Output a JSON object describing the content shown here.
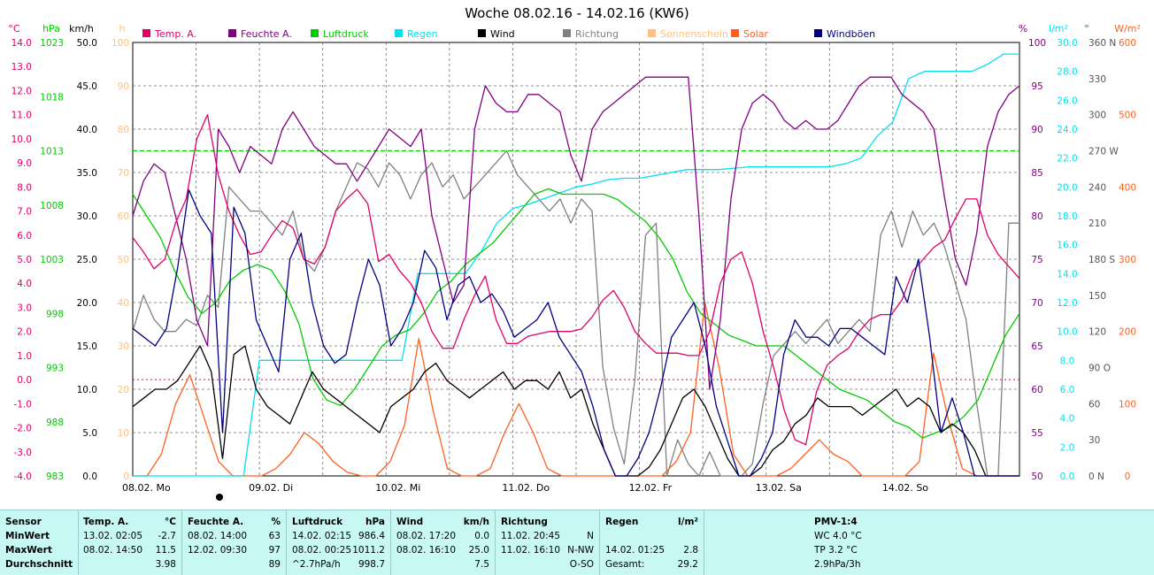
{
  "title": "Woche 08.02.16 - 14.02.16 (KW6)",
  "colors": {
    "temp": "#e0006a",
    "humidity": "#800080",
    "pressure": "#00cc00",
    "rain": "#00e0f0",
    "wind": "#000000",
    "direction": "#808080",
    "sunshine": "#ffc080",
    "solar": "#ff6020",
    "gust": "#000080",
    "grid": "#707070",
    "table_bg": "#c8f8f4"
  },
  "legend": [
    {
      "label": "Temp. A.",
      "color": "#e0006a"
    },
    {
      "label": "Feuchte A.",
      "color": "#800080"
    },
    {
      "label": "Luftdruck",
      "color": "#00cc00"
    },
    {
      "label": "Regen",
      "color": "#00e0f0"
    },
    {
      "label": "Wind",
      "color": "#000000"
    },
    {
      "label": "Richtung",
      "color": "#808080"
    },
    {
      "label": "Sonnenschein",
      "color": "#ffc080"
    },
    {
      "label": "Solar",
      "color": "#ff6020"
    },
    {
      "label": "Windböen",
      "color": "#000080"
    }
  ],
  "axes": {
    "temp": {
      "unit": "°C",
      "ticks": [
        "14.0",
        "13.0",
        "12.0",
        "11.0",
        "10.0",
        "9.0",
        "8.0",
        "7.0",
        "6.0",
        "5.0",
        "4.0",
        "3.0",
        "2.0",
        "1.0",
        "0.0",
        "-1.0",
        "-2.0",
        "-3.0",
        "-4.0"
      ]
    },
    "pressure": {
      "unit": "hPa",
      "ticks": [
        "1023",
        "1018",
        "1013",
        "1008",
        "1003",
        "998",
        "993",
        "988",
        "983"
      ]
    },
    "wind": {
      "unit": "km/h",
      "ticks": [
        "50.0",
        "45.0",
        "40.0",
        "35.0",
        "30.0",
        "25.0",
        "20.0",
        "15.0",
        "10.0",
        "5.0",
        "0.0"
      ]
    },
    "sun": {
      "unit": "h",
      "ticks": [
        "100",
        "90",
        "80",
        "70",
        "60",
        "50",
        "40",
        "30",
        "20",
        "10",
        "0"
      ]
    },
    "humidity": {
      "unit": "%",
      "ticks": [
        "100",
        "95",
        "90",
        "85",
        "80",
        "75",
        "70",
        "65",
        "60",
        "55",
        "50"
      ]
    },
    "rain": {
      "unit": "l/m²",
      "ticks": [
        "30.0",
        "28.0",
        "26.0",
        "24.0",
        "22.0",
        "20.0",
        "18.0",
        "16.0",
        "14.0",
        "12.0",
        "10.0",
        "8.0",
        "6.0",
        "4.0",
        "2.0",
        "0.0"
      ]
    },
    "direction": {
      "unit": "°",
      "ticks": [
        "360 N",
        "330",
        "300",
        "270 W",
        "240",
        "210",
        "180 S",
        "150",
        "120",
        "90 O",
        "60",
        "30",
        "0 N"
      ]
    },
    "solar": {
      "unit": "W/m²",
      "ticks": [
        "600",
        "500",
        "400",
        "300",
        "200",
        "100",
        "0"
      ]
    },
    "x_labels": [
      "08.02. Mo",
      "09.02. Di",
      "10.02. Mi",
      "11.02. Do",
      "12.02. Fr",
      "13.02. Sa",
      "14.02. So"
    ]
  },
  "chart_data": {
    "type": "line",
    "title": "Woche 08.02.16 - 14.02.16 (KW6)",
    "x_start": "08.02.16 00:00",
    "x_step_hours": 2,
    "series": [
      {
        "name": "Temp. A.",
        "unit": "°C",
        "values": [
          5.9,
          5.3,
          4.6,
          5.0,
          6.5,
          7.5,
          10.0,
          11.0,
          8.5,
          7.0,
          6.0,
          5.2,
          5.3,
          6.0,
          6.6,
          6.3,
          5.0,
          4.8,
          5.5,
          7.0,
          7.5,
          7.9,
          7.3,
          4.9,
          5.2,
          4.5,
          4.0,
          3.2,
          2.0,
          1.3,
          1.3,
          2.5,
          3.5,
          4.3,
          2.5,
          1.5,
          1.5,
          1.8,
          1.9,
          2.0,
          2.0,
          2.0,
          2.1,
          2.6,
          3.3,
          3.7,
          3.0,
          2.0,
          1.5,
          1.1,
          1.1,
          1.1,
          1.0,
          1.0,
          2.0,
          4.0,
          5.0,
          5.3,
          4.0,
          2.0,
          0.5,
          -1.3,
          -2.5,
          -2.7,
          -0.5,
          0.6,
          1.0,
          1.3,
          2.0,
          2.5,
          2.7,
          2.7,
          3.3,
          4.5,
          5.0,
          5.5,
          5.8,
          6.7,
          7.5,
          7.5,
          6.0,
          5.2,
          4.7,
          4.2
        ]
      },
      {
        "name": "Feuchte A.",
        "unit": "%",
        "values": [
          80,
          84,
          86,
          85,
          80,
          75,
          68,
          65,
          90,
          88,
          85,
          88,
          87,
          86,
          90,
          92,
          90,
          88,
          87,
          86,
          86,
          84,
          86,
          88,
          90,
          89,
          88,
          90,
          80,
          75,
          70,
          72,
          90,
          95,
          93,
          92,
          92,
          94,
          94,
          93,
          92,
          87,
          84,
          90,
          92,
          93,
          94,
          95,
          96,
          96,
          96,
          96,
          96,
          80,
          60,
          68,
          82,
          90,
          93,
          94,
          93,
          91,
          90,
          91,
          90,
          90,
          91,
          93,
          95,
          96,
          96,
          96,
          94,
          93,
          92,
          90,
          82,
          75,
          72,
          78,
          88,
          92,
          94,
          95
        ]
      },
      {
        "name": "Luftdruck",
        "unit": "hPa",
        "values": [
          1009.0,
          1007.0,
          1005.0,
          1002.0,
          999.5,
          998.0,
          999.0,
          1001.0,
          1002.0,
          1002.5,
          1002.0,
          1000.0,
          997.0,
          992.0,
          990.0,
          989.5,
          991.0,
          993.0,
          995.0,
          996.0,
          996.5,
          998.0,
          1000.0,
          1001.0,
          1002.5,
          1003.5,
          1004.5,
          1006.0,
          1007.5,
          1009.0,
          1009.5,
          1009.0,
          1009.0,
          1009.0,
          1009.0,
          1008.5,
          1007.5,
          1006.5,
          1005.0,
          1003.0,
          1000.0,
          998.0,
          997.0,
          996.0,
          995.5,
          995.0,
          995.0,
          995.0,
          994.0,
          993.0,
          992.0,
          991.0,
          990.5,
          990.0,
          989.0,
          988.0,
          987.5,
          986.5,
          987.0,
          987.5,
          988.5,
          990.0,
          993.0,
          996.0,
          998.0
        ]
      },
      {
        "name": "Regen",
        "unit": "l/m²",
        "values": [
          0,
          0,
          0,
          0,
          0,
          0,
          0,
          0,
          8.0,
          8.0,
          8.0,
          8.0,
          8.0,
          8.0,
          8.0,
          8.0,
          8.0,
          8.0,
          14.0,
          14.0,
          14.0,
          14.0,
          15.5,
          17.5,
          18.5,
          18.8,
          19.2,
          19.6,
          20.0,
          20.2,
          20.5,
          20.6,
          20.6,
          20.8,
          21.0,
          21.2,
          21.2,
          21.2,
          21.3,
          21.4,
          21.4,
          21.4,
          21.4,
          21.4,
          21.4,
          21.6,
          22.0,
          23.5,
          24.5,
          27.5,
          28.0,
          28.0,
          28.0,
          28.0,
          28.5,
          29.2,
          29.2
        ]
      },
      {
        "name": "Wind",
        "unit": "km/h",
        "values": [
          8,
          9,
          10,
          10,
          11,
          13,
          15,
          12,
          2,
          14,
          15,
          10,
          8,
          7,
          6,
          9,
          12,
          10,
          9,
          8,
          7,
          6,
          5,
          8,
          9,
          10,
          12,
          13,
          11,
          10,
          9,
          10,
          11,
          12,
          10,
          11,
          11,
          10,
          12,
          9,
          10,
          6,
          3,
          0,
          0,
          0,
          1,
          3,
          6,
          9,
          10,
          8,
          5,
          2,
          0,
          0,
          1,
          3,
          4,
          6,
          7,
          9,
          8,
          8,
          8,
          7,
          8,
          9,
          10,
          8,
          9,
          8,
          5,
          6,
          5,
          3,
          0,
          0,
          0,
          0
        ]
      },
      {
        "name": "Richtung",
        "unit": "°",
        "values": [
          120,
          150,
          130,
          120,
          120,
          130,
          125,
          150,
          140,
          240,
          230,
          220,
          220,
          210,
          200,
          220,
          180,
          170,
          190,
          220,
          240,
          260,
          255,
          240,
          260,
          250,
          230,
          250,
          260,
          240,
          250,
          230,
          240,
          250,
          260,
          270,
          250,
          240,
          230,
          220,
          230,
          210,
          230,
          220,
          90,
          40,
          10,
          80,
          200,
          210,
          0,
          30,
          10,
          0,
          20,
          0,
          0,
          0,
          10,
          60,
          100,
          110,
          120,
          110,
          120,
          130,
          110,
          120,
          130,
          120,
          200,
          220,
          190,
          220,
          200,
          210,
          190,
          160,
          130,
          60,
          0,
          0,
          210,
          210
        ]
      },
      {
        "name": "Solar",
        "unit": "W/m²",
        "values": [
          0,
          0,
          30,
          100,
          140,
          80,
          20,
          0,
          0,
          0,
          10,
          30,
          60,
          45,
          20,
          5,
          0,
          0,
          20,
          70,
          190,
          90,
          10,
          0,
          0,
          10,
          60,
          100,
          60,
          10,
          0,
          0,
          0,
          0,
          0,
          0,
          0,
          0,
          20,
          60,
          240,
          150,
          30,
          0,
          0,
          0,
          10,
          30,
          50,
          30,
          20,
          0,
          0,
          0,
          0,
          20,
          170,
          80,
          10,
          0,
          0,
          0,
          0
        ]
      },
      {
        "name": "Windböen",
        "unit": "km/h",
        "values": [
          17,
          16,
          15,
          17,
          24,
          33,
          30,
          28,
          5,
          31,
          28,
          18,
          15,
          12,
          25,
          28,
          20,
          15,
          13,
          14,
          20,
          25,
          22,
          15,
          17,
          20,
          26,
          24,
          18,
          22,
          23,
          20,
          21,
          19,
          16,
          17,
          18,
          20,
          16,
          14,
          12,
          8,
          3,
          0,
          0,
          2,
          5,
          10,
          16,
          18,
          20,
          15,
          8,
          4,
          0,
          0,
          2,
          5,
          14,
          18,
          16,
          16,
          15,
          17,
          17,
          16,
          15,
          14,
          23,
          20,
          25,
          16,
          5,
          9,
          5,
          0,
          0,
          0,
          0,
          0
        ]
      }
    ],
    "xlim": [
      "08.02. 00:00",
      "15.02. 00:00"
    ],
    "ylim_temp": [
      -4.0,
      14.0
    ],
    "ylim_humidity": [
      50,
      100
    ],
    "ylim_pressure": [
      983,
      1023
    ],
    "ylim_wind": [
      0,
      50
    ],
    "ylim_rain": [
      0,
      30
    ],
    "ylim_direction": [
      0,
      360
    ],
    "ylim_solar": [
      0,
      600
    ],
    "reference_lines": [
      {
        "series": "Temp. A.",
        "value": 0.0
      },
      {
        "series": "Luftdruck",
        "value": 1013
      }
    ],
    "grid": true,
    "legend_position": "top"
  },
  "table": {
    "headers": {
      "sensor": "Sensor",
      "temp": {
        "name": "Temp. A.",
        "unit": "°C"
      },
      "hum": {
        "name": "Feuchte A.",
        "unit": "%"
      },
      "press": {
        "name": "Luftdruck",
        "unit": "hPa"
      },
      "wind": {
        "name": "Wind",
        "unit": "km/h"
      },
      "dir": {
        "name": "Richtung"
      },
      "rain": {
        "name": "Regen",
        "unit": "l/m²"
      },
      "pmv": "PMV-1:4"
    },
    "rows": [
      "MinWert",
      "MaxWert",
      "Durchschnitt"
    ],
    "temp": [
      {
        "time": "13.02.  02:05",
        "value": "-2.7"
      },
      {
        "time": "08.02.  14:50",
        "value": "11.5"
      },
      {
        "time": "",
        "value": "3.98"
      }
    ],
    "hum": [
      {
        "time": "08.02.  14:00",
        "value": "63"
      },
      {
        "time": "12.02.  09:30",
        "value": "97"
      },
      {
        "time": "",
        "value": "89"
      }
    ],
    "press": [
      {
        "time": "14.02.  02:15",
        "value": "986.4"
      },
      {
        "time": "08.02.  00:25",
        "value": "1011.2"
      },
      {
        "time": "^2.7hPa/h",
        "value": "998.7"
      }
    ],
    "wind": [
      {
        "time": "08.02.  17:20",
        "value": "0.0"
      },
      {
        "time": "08.02.  16:10",
        "value": "25.0"
      },
      {
        "time": "",
        "value": "7.5"
      }
    ],
    "dir": [
      {
        "time": "11.02.  20:45",
        "value": "N"
      },
      {
        "time": "11.02.  16:10",
        "value": "N-NW"
      },
      {
        "time": "",
        "value": "O-SO"
      }
    ],
    "rain": [
      {
        "time": "",
        "value": ""
      },
      {
        "time": "14.02.  01:25",
        "value": "2.8"
      },
      {
        "time": "Gesamt:",
        "value": "29.2"
      }
    ],
    "pmv": [
      "WC 4.0 °C",
      "TP 3.2 °C",
      "2.9hPa/3h"
    ]
  }
}
